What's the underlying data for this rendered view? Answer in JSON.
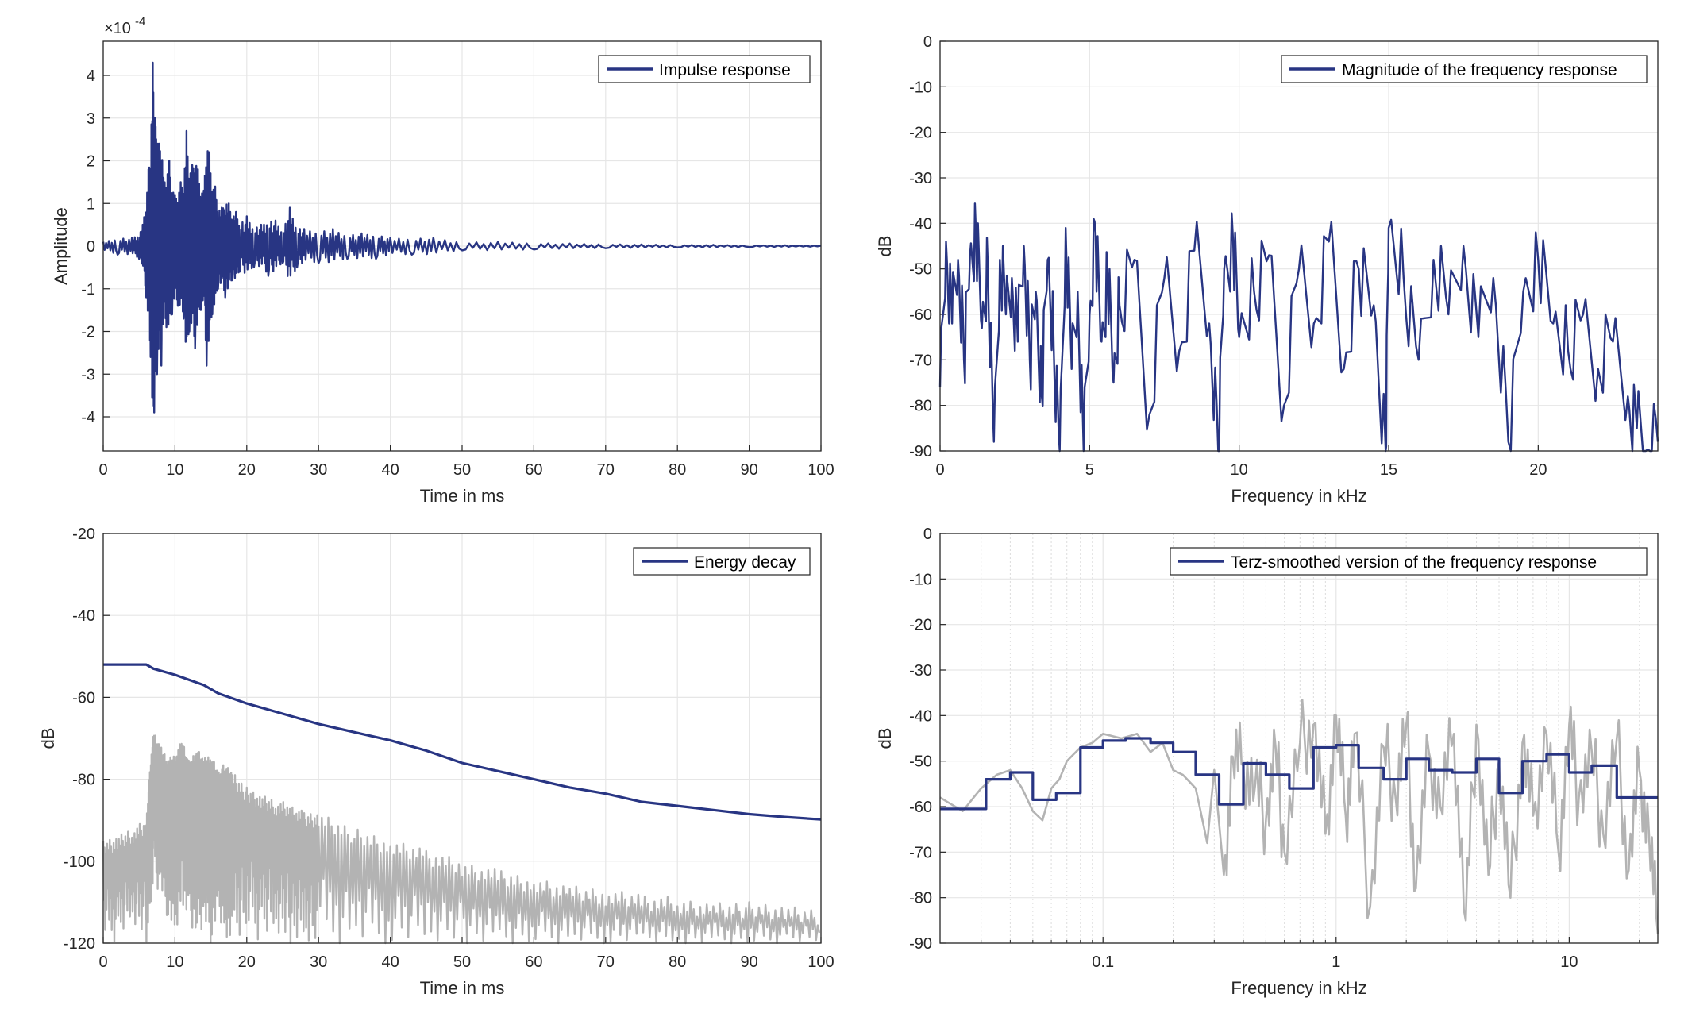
{
  "colors": {
    "accent": "#283583",
    "gray": "#b3b3b3",
    "grid": "#e6e6e6",
    "axis": "#262626"
  },
  "chart_data": [
    {
      "id": "impulse",
      "type": "line",
      "title": "",
      "xlabel": "Time in ms",
      "ylabel": "Amplitude",
      "xlim": [
        0,
        100
      ],
      "ylim": [
        -4.8,
        4.8
      ],
      "x_ticks": [
        "0",
        "10",
        "20",
        "30",
        "40",
        "50",
        "60",
        "70",
        "80",
        "90",
        "100"
      ],
      "y_ticks": [
        "-4",
        "-3",
        "-2",
        "-1",
        "0",
        "1",
        "2",
        "3",
        "4"
      ],
      "y_exponent": "×10^-4",
      "exp_base": "×10",
      "exp_power": "-4",
      "legend": {
        "label": "Impulse response",
        "position": "top-right"
      },
      "grid": true,
      "series": [
        {
          "name": "Impulse response",
          "x": [
            0,
            2,
            4,
            5,
            5.5,
            6,
            6.3,
            6.6,
            6.9,
            7.1,
            7.3,
            7.5,
            7.8,
            8.1,
            8.4,
            8.8,
            9.2,
            9.6,
            10,
            10.4,
            10.8,
            11.2,
            11.6,
            12,
            12.4,
            12.8,
            13.2,
            13.6,
            14,
            14.4,
            14.8,
            15.2,
            15.6,
            16,
            16.5,
            17,
            17.5,
            18,
            18.5,
            19,
            20,
            21,
            22,
            23,
            24,
            25,
            26,
            27,
            28,
            30,
            32,
            34,
            36,
            38,
            40,
            43,
            46,
            50,
            55,
            60,
            65,
            70,
            75,
            80,
            85,
            90,
            95,
            100
          ],
          "y": [
            0.1,
            -0.2,
            0.2,
            -0.3,
            0.5,
            -1.2,
            1.8,
            -2.6,
            4.3,
            -3.9,
            2.8,
            -3.0,
            2.4,
            -2.8,
            1.6,
            -1.9,
            2.0,
            -1.6,
            1.2,
            -1.4,
            1.5,
            -1.7,
            2.7,
            -2.0,
            1.9,
            -2.4,
            1.8,
            -1.5,
            1.3,
            -2.8,
            2.2,
            -1.6,
            1.4,
            -1.0,
            0.9,
            -1.2,
            1.0,
            -0.8,
            0.8,
            -0.6,
            0.7,
            -0.5,
            0.5,
            -0.7,
            0.6,
            -0.4,
            0.9,
            -0.5,
            0.4,
            -0.4,
            0.4,
            -0.3,
            0.3,
            -0.3,
            0.2,
            -0.2,
            0.2,
            -0.1,
            0.1,
            -0.08,
            0.06,
            -0.05,
            0.04,
            -0.03,
            0.03,
            -0.02,
            0.02,
            0.01
          ]
        }
      ]
    },
    {
      "id": "magnitude",
      "type": "line",
      "title": "",
      "xlabel": "Frequency in kHz",
      "ylabel": "dB",
      "xlim": [
        0,
        24
      ],
      "ylim": [
        -90,
        0
      ],
      "x_ticks": [
        "0",
        "5",
        "10",
        "15",
        "20"
      ],
      "y_ticks": [
        "0",
        "-10",
        "-20",
        "-30",
        "-40",
        "-50",
        "-60",
        "-70",
        "-80",
        "-90"
      ],
      "legend": {
        "label": "Magnitude of the frequency response",
        "position": "top-right"
      },
      "grid": true,
      "series": [
        {
          "name": "Magnitude of the frequency response",
          "x": [
            0,
            0.2,
            0.4,
            0.6,
            0.8,
            1.0,
            1.2,
            1.4,
            1.6,
            1.8,
            2.0,
            2.2,
            2.4,
            2.6,
            2.8,
            3.0,
            3.2,
            3.4,
            3.6,
            3.8,
            4.0,
            4.2,
            4.4,
            4.6,
            4.8,
            5.0,
            5.2,
            5.4,
            5.6,
            5.8,
            6.0,
            6.5,
            7.0,
            7.5,
            8.0,
            8.5,
            9.0,
            9.3,
            9.5,
            9.8,
            10.0,
            10.5,
            11.0,
            11.5,
            12.0,
            12.5,
            13.0,
            13.5,
            14.0,
            14.5,
            14.9,
            15.0,
            15.5,
            16.0,
            16.5,
            17.0,
            17.5,
            18.0,
            18.5,
            19.0,
            19.5,
            20.0,
            20.5,
            21.0,
            21.5,
            22.0,
            22.5,
            23.0,
            23.3,
            23.6,
            24.0
          ],
          "y": [
            -76,
            -44,
            -62,
            -48,
            -70,
            -47,
            -42,
            -63,
            -50,
            -88,
            -48,
            -60,
            -52,
            -66,
            -45,
            -70,
            -55,
            -78,
            -48,
            -67,
            -90,
            -41,
            -72,
            -55,
            -90,
            -60,
            -42,
            -66,
            -51,
            -75,
            -58,
            -48,
            -82,
            -52,
            -68,
            -46,
            -62,
            -90,
            -50,
            -44,
            -65,
            -55,
            -47,
            -80,
            -50,
            -62,
            -44,
            -72,
            -50,
            -58,
            -90,
            -41,
            -52,
            -70,
            -48,
            -60,
            -45,
            -65,
            -52,
            -88,
            -55,
            -48,
            -62,
            -68,
            -60,
            -72,
            -66,
            -78,
            -85,
            -90,
            -88
          ]
        }
      ]
    },
    {
      "id": "energy",
      "type": "line",
      "title": "",
      "xlabel": "Time in ms",
      "ylabel": "dB",
      "xlim": [
        0,
        100
      ],
      "ylim": [
        -120,
        -20
      ],
      "x_ticks": [
        "0",
        "10",
        "20",
        "30",
        "40",
        "50",
        "60",
        "70",
        "80",
        "90",
        "100"
      ],
      "y_ticks": [
        "-20",
        "-40",
        "-60",
        "-80",
        "-100",
        "-120"
      ],
      "legend": {
        "label": "Energy decay",
        "position": "top-right"
      },
      "grid": true,
      "series": [
        {
          "name": "Energy decay",
          "x": [
            0,
            6,
            7,
            10,
            14,
            16,
            20,
            25,
            30,
            35,
            40,
            45,
            50,
            55,
            60,
            65,
            70,
            75,
            80,
            85,
            90,
            95,
            100
          ],
          "y": [
            -52,
            -52,
            -53,
            -54.5,
            -57,
            -59,
            -61.5,
            -64,
            -66.5,
            -68.5,
            -70.5,
            -73,
            -76,
            -78,
            -80,
            -82,
            -83.5,
            -85.5,
            -86.5,
            -87.5,
            -88.5,
            -89.2,
            -89.8
          ]
        },
        {
          "name": "",
          "x": [
            0,
            2,
            4,
            6,
            6.5,
            7,
            8,
            9,
            10,
            11,
            12,
            13,
            14,
            15,
            16,
            17,
            18,
            20,
            22,
            24,
            26,
            28,
            30,
            35,
            40,
            45,
            50,
            55,
            60,
            65,
            70,
            75,
            80,
            85,
            90,
            95,
            100
          ],
          "upper": [
            -95,
            -94,
            -92,
            -90,
            -78,
            -68,
            -72,
            -75,
            -74,
            -70,
            -76,
            -72,
            -75,
            -74,
            -78,
            -76,
            -78,
            -82,
            -84,
            -85,
            -86,
            -88,
            -88,
            -92,
            -95,
            -97,
            -100,
            -102,
            -104,
            -106,
            -107,
            -108,
            -109,
            -110,
            -110,
            -111,
            -112
          ],
          "lower": [
            -118,
            -120,
            -115,
            -120,
            -112,
            -105,
            -108,
            -114,
            -120,
            -110,
            -115,
            -118,
            -116,
            -120,
            -115,
            -118,
            -120,
            -116,
            -120,
            -118,
            -120,
            -119,
            -120,
            -120,
            -120,
            -120,
            -120,
            -120,
            -120,
            -120,
            -120,
            -120,
            -120,
            -120,
            -120,
            -120,
            -120
          ]
        }
      ]
    },
    {
      "id": "terz",
      "type": "line",
      "title": "",
      "xlabel": "Frequency in kHz",
      "ylabel": "dB",
      "xscale": "log",
      "xlim": [
        0.02,
        24
      ],
      "ylim": [
        -90,
        0
      ],
      "x_ticks": [
        "0.1",
        "1",
        "10"
      ],
      "x_tick_values": [
        0.1,
        1,
        10
      ],
      "y_ticks": [
        "0",
        "-10",
        "-20",
        "-30",
        "-40",
        "-50",
        "-60",
        "-70",
        "-80",
        "-90"
      ],
      "legend": {
        "label": "Terz-smoothed version of the frequency response",
        "position": "top-right"
      },
      "grid": true,
      "series": [
        {
          "name": "Terz-smoothed version of the frequency response",
          "bands": [
            0.02,
            0.0315,
            0.04,
            0.05,
            0.063,
            0.08,
            0.1,
            0.125,
            0.16,
            0.2,
            0.25,
            0.315,
            0.4,
            0.5,
            0.63,
            0.8,
            1.0,
            1.25,
            1.6,
            2.0,
            2.5,
            3.15,
            4.0,
            5.0,
            6.3,
            8.0,
            10.0,
            12.5,
            16.0,
            20.0,
            24.0
          ],
          "values": [
            -60.5,
            -54,
            -52.5,
            -58.5,
            -57,
            -47,
            -45.5,
            -45,
            -46,
            -48,
            -53,
            -59.5,
            -50.5,
            -53,
            -56,
            -47,
            -46.5,
            -51.5,
            -54,
            -49.5,
            -52,
            -52.5,
            -49.5,
            -57,
            -50,
            -48.5,
            -52.5,
            -51,
            -58,
            -58
          ]
        },
        {
          "name": "",
          "x": [
            0.02,
            0.025,
            0.03,
            0.035,
            0.04,
            0.045,
            0.05,
            0.055,
            0.06,
            0.065,
            0.07,
            0.08,
            0.09,
            0.1,
            0.12,
            0.14,
            0.16,
            0.18,
            0.2,
            0.22,
            0.25,
            0.28,
            0.3,
            0.33,
            0.36,
            0.4,
            0.45,
            0.5,
            0.55,
            0.6,
            0.7,
            0.8,
            0.9,
            1.0,
            1.1,
            1.2,
            1.4,
            1.6,
            1.8,
            2.0,
            2.2,
            2.5,
            2.8,
            3.2,
            3.6,
            4.0,
            4.5,
            5.0,
            5.6,
            6.3,
            7.0,
            8.0,
            9.0,
            10.0,
            11.0,
            12.5,
            14.0,
            16.0,
            18.0,
            20.0,
            22.0,
            24.0
          ],
          "y": [
            -58,
            -61,
            -56,
            -53,
            -52,
            -56,
            -61,
            -63,
            -56,
            -54,
            -50,
            -47,
            -46,
            -44,
            -45,
            -44,
            -48,
            -46,
            -52,
            -53,
            -56,
            -68,
            -52,
            -75,
            -49,
            -51,
            -55,
            -63,
            -47,
            -70,
            -46,
            -42,
            -66,
            -40,
            -62,
            -44,
            -82,
            -47,
            -58,
            -42,
            -78,
            -48,
            -60,
            -44,
            -85,
            -42,
            -75,
            -50,
            -80,
            -46,
            -62,
            -44,
            -70,
            -42,
            -58,
            -48,
            -66,
            -45,
            -74,
            -52,
            -66,
            -88
          ]
        }
      ]
    }
  ]
}
